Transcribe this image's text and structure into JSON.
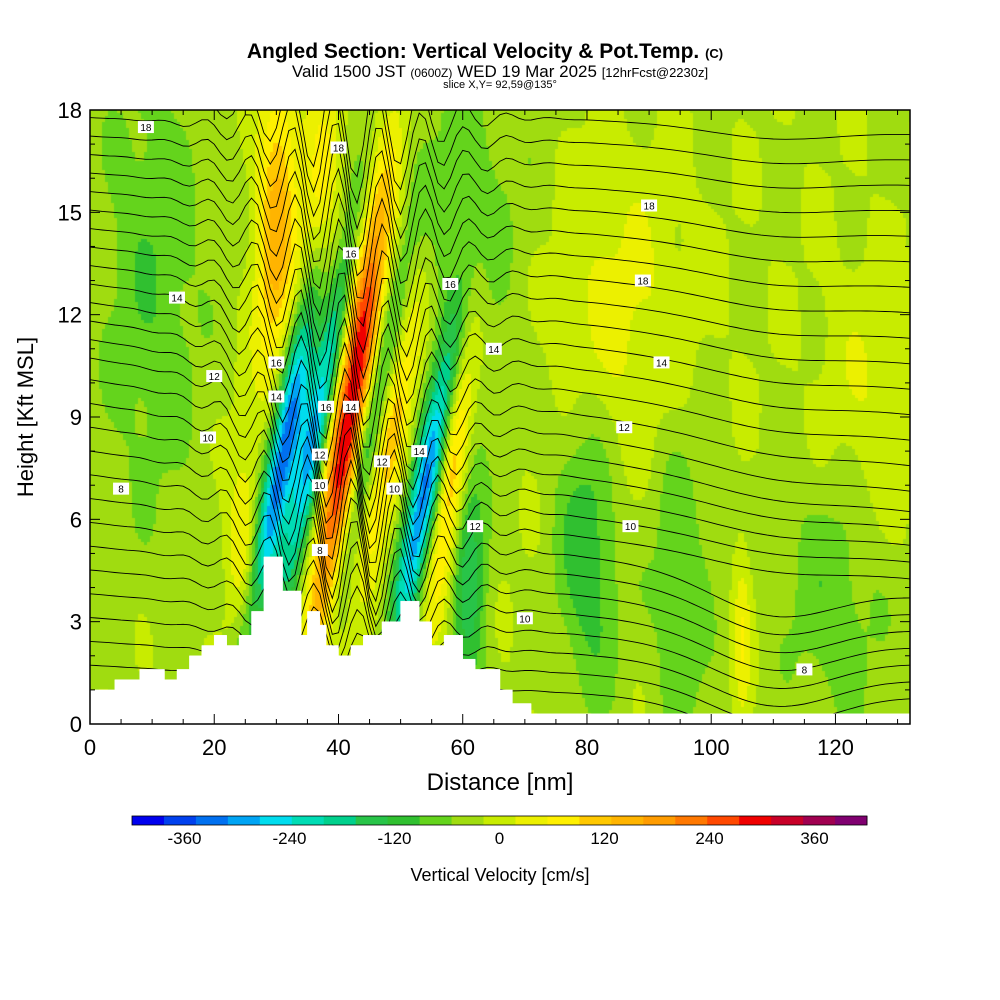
{
  "header": {
    "title_main": "Angled Section: Vertical Velocity & Pot.Temp.",
    "title_unit": "(C)",
    "valid_prefix": "Valid 1500 JST",
    "valid_utc": "(0600Z)",
    "valid_date": "WED 19 Mar 2025",
    "forecast": "[12hrFcst@2230z]",
    "slice": "slice X,Y= 92,59@135°"
  },
  "chart_data": {
    "type": "heatmap",
    "xlabel": "Distance [nm]",
    "ylabel": "Height [Kft MSL]",
    "xlim": [
      0,
      132
    ],
    "ylim": [
      0,
      18
    ],
    "x_ticks": [
      "0",
      "20",
      "40",
      "60",
      "80",
      "100",
      "120"
    ],
    "y_ticks": [
      "0",
      "3",
      "6",
      "9",
      "12",
      "15",
      "18"
    ],
    "colorbar": {
      "label": "Vertical Velocity [cm/s]",
      "ticks": [
        "-360",
        "-240",
        "-120",
        "0",
        "120",
        "240",
        "360"
      ],
      "range": [
        -420,
        420
      ],
      "step": 40,
      "colors": [
        "#0000ee",
        "#0040ee",
        "#0070f0",
        "#00a4f4",
        "#00dcee",
        "#00dcb4",
        "#00d08c",
        "#28c448",
        "#30c030",
        "#64d41c",
        "#a0dc10",
        "#c8ec00",
        "#ecf000",
        "#fff000",
        "#ffc800",
        "#ffb400",
        "#ff9c00",
        "#ff7800",
        "#ff4800",
        "#f00000",
        "#c80028",
        "#a00050",
        "#800070"
      ]
    },
    "terrain_kft": [
      [
        0,
        1.0
      ],
      [
        4,
        1.0
      ],
      [
        4,
        1.3
      ],
      [
        8,
        1.3
      ],
      [
        8,
        1.6
      ],
      [
        12,
        1.6
      ],
      [
        12,
        1.3
      ],
      [
        14,
        1.3
      ],
      [
        14,
        1.6
      ],
      [
        16,
        1.6
      ],
      [
        16,
        2.0
      ],
      [
        18,
        2.0
      ],
      [
        18,
        2.3
      ],
      [
        20,
        2.3
      ],
      [
        20,
        2.6
      ],
      [
        22,
        2.6
      ],
      [
        22,
        2.3
      ],
      [
        24,
        2.3
      ],
      [
        24,
        2.6
      ],
      [
        26,
        2.6
      ],
      [
        26,
        3.3
      ],
      [
        28,
        3.3
      ],
      [
        28,
        4.9
      ],
      [
        31,
        4.9
      ],
      [
        31,
        3.9
      ],
      [
        34,
        3.9
      ],
      [
        34,
        2.6
      ],
      [
        35,
        2.6
      ],
      [
        35,
        3.3
      ],
      [
        37,
        3.3
      ],
      [
        37,
        2.9
      ],
      [
        38,
        2.9
      ],
      [
        38,
        2.3
      ],
      [
        40,
        2.3
      ],
      [
        40,
        2.0
      ],
      [
        42,
        2.0
      ],
      [
        42,
        2.3
      ],
      [
        44,
        2.3
      ],
      [
        44,
        2.6
      ],
      [
        47,
        2.6
      ],
      [
        47,
        3.0
      ],
      [
        50,
        3.0
      ],
      [
        50,
        3.6
      ],
      [
        53,
        3.6
      ],
      [
        53,
        3.0
      ],
      [
        55,
        3.0
      ],
      [
        55,
        2.3
      ],
      [
        57,
        2.3
      ],
      [
        57,
        2.6
      ],
      [
        60,
        2.6
      ],
      [
        60,
        1.9
      ],
      [
        62,
        1.9
      ],
      [
        62,
        1.6
      ],
      [
        66,
        1.6
      ],
      [
        66,
        1.0
      ],
      [
        68,
        1.0
      ],
      [
        68,
        0.6
      ],
      [
        71,
        0.6
      ],
      [
        71,
        0.3
      ],
      [
        132,
        0.3
      ]
    ],
    "velocity_field": [
      {
        "x": 31,
        "y": 7.8,
        "sx": 1.8,
        "sy": 3.6,
        "value": -360,
        "tilt": -2.0
      },
      {
        "x": 36.5,
        "y": 8.8,
        "sx": 1.6,
        "sy": 3.6,
        "value": -300,
        "tilt": -2.0
      },
      {
        "x": 42,
        "y": 9.2,
        "sx": 2.0,
        "sy": 4.8,
        "value": 390,
        "tilt": -1.6
      },
      {
        "x": 44.5,
        "y": 8.0,
        "sx": 1.6,
        "sy": 3.6,
        "value": -180,
        "tilt": -2.2
      },
      {
        "x": 48.5,
        "y": 8.6,
        "sx": 2.0,
        "sy": 3.4,
        "value": 150,
        "tilt": -1.8
      },
      {
        "x": 54,
        "y": 6.8,
        "sx": 1.8,
        "sy": 3.6,
        "value": -330,
        "tilt": -2.0
      },
      {
        "x": 58.5,
        "y": 8.0,
        "sx": 1.8,
        "sy": 3.4,
        "value": 200,
        "tilt": -1.2
      },
      {
        "x": 30,
        "y": 14.5,
        "sx": 2.2,
        "sy": 3.2,
        "value": 190,
        "tilt": -0.3
      },
      {
        "x": 37.5,
        "y": 15.0,
        "sx": 2.2,
        "sy": 3.0,
        "value": 110,
        "tilt": -0.3
      },
      {
        "x": 25,
        "y": 5.2,
        "sx": 2.0,
        "sy": 2.2,
        "value": 100,
        "tilt": 0
      },
      {
        "x": 61,
        "y": 4.5,
        "sx": 2.0,
        "sy": 2.8,
        "value": -140,
        "tilt": 0
      },
      {
        "x": 80,
        "y": 5.0,
        "sx": 3.5,
        "sy": 3.0,
        "value": -110,
        "tilt": 0.3
      },
      {
        "x": 95,
        "y": 4.0,
        "sx": 3.5,
        "sy": 3.5,
        "value": -70,
        "tilt": 0.2
      },
      {
        "x": 120,
        "y": 4.0,
        "sx": 6.0,
        "sy": 3.0,
        "value": -70,
        "tilt": 0
      },
      {
        "x": 10,
        "y": 13.0,
        "sx": 6.0,
        "sy": 5.0,
        "value": -70,
        "tilt": 0
      },
      {
        "x": 60,
        "y": 15.0,
        "sx": 8.0,
        "sy": 3.5,
        "value": -60,
        "tilt": 0
      },
      {
        "x": 105,
        "y": 2.5,
        "sx": 1.0,
        "sy": 2.0,
        "value": 80,
        "tilt": 0
      },
      {
        "x": 85,
        "y": 12.0,
        "sx": 8.0,
        "sy": 3.0,
        "value": 60,
        "tilt": 0
      },
      {
        "x": 125,
        "y": 9.0,
        "sx": 6.0,
        "sy": 3.0,
        "value": 50,
        "tilt": 0
      }
    ],
    "background_value": 15,
    "isentrope_labels": [
      {
        "text": "18",
        "x": 9,
        "y": 17.5
      },
      {
        "text": "18",
        "x": 40,
        "y": 16.9
      },
      {
        "text": "18",
        "x": 90,
        "y": 15.2
      },
      {
        "text": "18",
        "x": 89,
        "y": 13.0
      },
      {
        "text": "16",
        "x": 42,
        "y": 13.8
      },
      {
        "text": "16",
        "x": 58,
        "y": 12.9
      },
      {
        "text": "16",
        "x": 30,
        "y": 10.6
      },
      {
        "text": "16",
        "x": 38,
        "y": 9.3
      },
      {
        "text": "14",
        "x": 14,
        "y": 12.5
      },
      {
        "text": "14",
        "x": 65,
        "y": 11.0
      },
      {
        "text": "14",
        "x": 92,
        "y": 10.6
      },
      {
        "text": "14",
        "x": 30,
        "y": 9.6
      },
      {
        "text": "14",
        "x": 42,
        "y": 9.3
      },
      {
        "text": "14",
        "x": 53,
        "y": 8.0
      },
      {
        "text": "12",
        "x": 20,
        "y": 10.2
      },
      {
        "text": "12",
        "x": 86,
        "y": 8.7
      },
      {
        "text": "12",
        "x": 37,
        "y": 7.9
      },
      {
        "text": "12",
        "x": 47,
        "y": 7.7
      },
      {
        "text": "12",
        "x": 62,
        "y": 5.8
      },
      {
        "text": "10",
        "x": 19,
        "y": 8.4
      },
      {
        "text": "10",
        "x": 37,
        "y": 7.0
      },
      {
        "text": "10",
        "x": 49,
        "y": 6.9
      },
      {
        "text": "10",
        "x": 87,
        "y": 5.8
      },
      {
        "text": "10",
        "x": 70,
        "y": 3.1
      },
      {
        "text": "8",
        "x": 5,
        "y": 6.9
      },
      {
        "text": "8",
        "x": 37,
        "y": 5.1
      },
      {
        "text": "8",
        "x": 115,
        "y": 1.6
      }
    ]
  }
}
